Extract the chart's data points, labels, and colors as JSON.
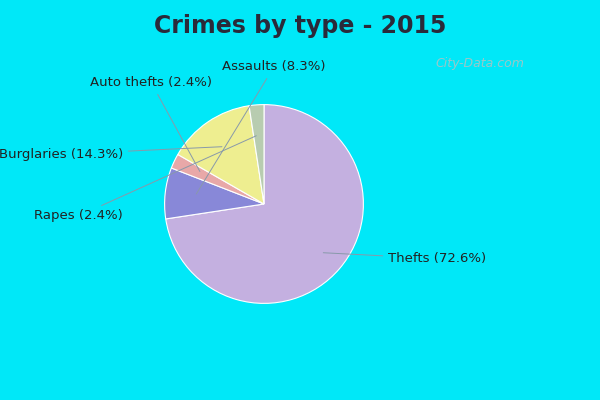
{
  "title": "Crimes by type - 2015",
  "title_fontsize": 17,
  "title_fontweight": "bold",
  "title_color": "#2a2a3a",
  "slices": [
    {
      "label": "Thefts (72.6%)",
      "value": 72.6,
      "color": "#c4b0e0"
    },
    {
      "label": "Assaults (8.3%)",
      "value": 8.3,
      "color": "#8888d8"
    },
    {
      "label": "Auto thefts (2.4%)",
      "value": 2.4,
      "color": "#e8a8a8"
    },
    {
      "label": "Burglaries (14.3%)",
      "value": 14.3,
      "color": "#eeee90"
    },
    {
      "label": "Rapes (2.4%)",
      "value": 2.4,
      "color": "#b8ccb0"
    }
  ],
  "background_top": "#00e8f8",
  "background_main": "#d8f0d8",
  "label_fontsize": 9.5,
  "label_color": "#222222",
  "startangle": 90,
  "watermark": "City-Data.com",
  "watermark_color": "#a8c4c4"
}
